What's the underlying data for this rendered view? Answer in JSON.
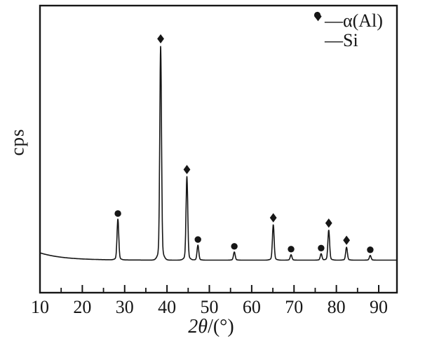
{
  "colors": {
    "ink": "#161616",
    "background": "#ffffff"
  },
  "chart_data": {
    "type": "line",
    "subtype": "xrd-diffraction-pattern",
    "title": "",
    "xlabel": "2θ/(°)",
    "xlabel_prefix": "2θ",
    "xlabel_suffix": "/(°)",
    "ylabel": "cps",
    "x_axis": {
      "min": 10,
      "max": 94,
      "major_ticks": [
        10,
        20,
        30,
        40,
        50,
        60,
        70,
        80,
        90
      ],
      "tick_labels": [
        "10",
        "20",
        "30",
        "40",
        "50",
        "60",
        "70",
        "80",
        "90"
      ],
      "minor_tick_step": 5
    },
    "y_axis": {
      "tick_labels": []
    },
    "legend": {
      "separator": "—",
      "entries": [
        {
          "marker": "diamond",
          "label": "α(Al)"
        },
        {
          "marker": "circle",
          "label": "Si"
        }
      ]
    },
    "background_curve": {
      "flat": 15.2,
      "amplitude": 3.4,
      "decay_deg": 5.5
    },
    "peak_sigma_deg": 0.2,
    "peaks": [
      {
        "two_theta": 28.4,
        "phase": "Si",
        "marker": "circle",
        "intensity": 19
      },
      {
        "two_theta": 38.5,
        "phase": "α(Al)",
        "marker": "diamond",
        "intensity": 100
      },
      {
        "two_theta": 44.7,
        "phase": "α(Al)",
        "marker": "diamond",
        "intensity": 39
      },
      {
        "two_theta": 47.3,
        "phase": "Si",
        "marker": "circle",
        "intensity": 7
      },
      {
        "two_theta": 55.9,
        "phase": "Si",
        "marker": "circle",
        "intensity": 3.8
      },
      {
        "two_theta": 65.1,
        "phase": "α(Al)",
        "marker": "diamond",
        "intensity": 16.5
      },
      {
        "two_theta": 69.3,
        "phase": "Si",
        "marker": "circle",
        "intensity": 2.5
      },
      {
        "two_theta": 76.4,
        "phase": "Si",
        "marker": "circle",
        "intensity": 3
      },
      {
        "two_theta": 78.2,
        "phase": "α(Al)",
        "marker": "diamond",
        "intensity": 14
      },
      {
        "two_theta": 82.4,
        "phase": "α(Al)",
        "marker": "diamond",
        "intensity": 6
      },
      {
        "two_theta": 88.0,
        "phase": "Si",
        "marker": "circle",
        "intensity": 2.2
      }
    ]
  }
}
